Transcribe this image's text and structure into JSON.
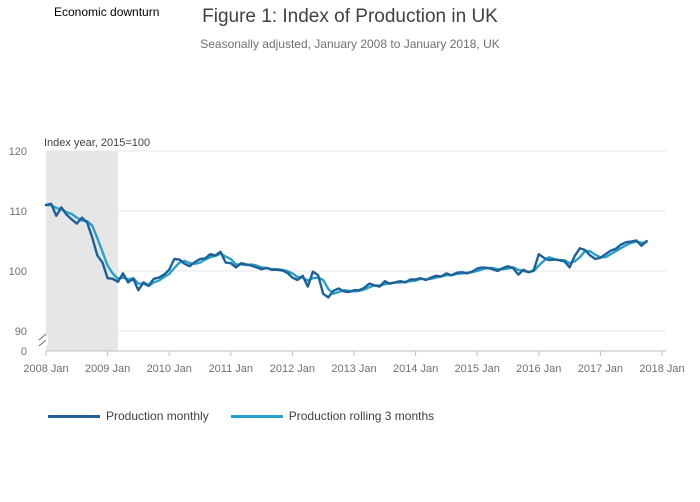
{
  "annotation": "Economic downturn",
  "colors": {
    "monthly": "#206095",
    "rolling": "#27a0cc",
    "shade": "#e6e6e6",
    "grid": "#e5e5e5"
  },
  "chart_data": {
    "type": "line",
    "title": "Figure 1: Index of Production in UK",
    "subtitle": "Seasonally adjusted, January 2008 to January 2018, UK",
    "ylabel": "Index year, 2015=100",
    "ylim": [
      90,
      120
    ],
    "yticks": [
      "120",
      "110",
      "100",
      "90"
    ],
    "ybase_label": "0",
    "xticks": [
      "2008 Jan",
      "2009 Jan",
      "2010 Jan",
      "2011 Jan",
      "2012 Jan",
      "2013 Jan",
      "2014 Jan",
      "2015 Jan",
      "2016 Jan",
      "2017 Jan",
      "2018 Jan"
    ],
    "shaded_region": {
      "label": "Economic downturn",
      "start_month": 0,
      "end_month": 14
    },
    "series": [
      {
        "name": "Production monthly",
        "values": [
          111,
          111.2,
          109.2,
          110.6,
          109.4,
          108.6,
          107.9,
          108.9,
          108.1,
          105.6,
          102.6,
          101.4,
          98.8,
          98.7,
          98.2,
          99.6,
          98.1,
          98.7,
          96.8,
          98.1,
          97.6,
          98.7,
          98.9,
          99.4,
          100.2,
          102,
          101.9,
          101.2,
          100.8,
          101.5,
          102,
          102.1,
          102.8,
          102.6,
          103.2,
          101.4,
          101.3,
          100.6,
          101.3,
          101.1,
          100.9,
          100.6,
          100.3,
          100.5,
          100.2,
          100.2,
          100.1,
          99.7,
          98.9,
          98.5,
          99.2,
          97.4,
          99.9,
          99.3,
          96.2,
          95.6,
          96.7,
          97.1,
          96.6,
          96.5,
          96.8,
          96.8,
          97.2,
          97.9,
          97.6,
          97.4,
          98.3,
          97.9,
          98.1,
          98.3,
          98.1,
          98.6,
          98.6,
          98.8,
          98.5,
          98.9,
          99.2,
          99.1,
          99.6,
          99.3,
          99.7,
          99.8,
          99.6,
          99.9,
          100.4,
          100.6,
          100.5,
          100.3,
          100.0,
          100.5,
          100.8,
          100.5,
          99.4,
          100.2,
          99.8,
          100.1,
          102.8,
          102.2,
          101.8,
          101.9,
          101.8,
          101.6,
          100.6,
          102.5,
          103.8,
          103.5,
          102.6,
          102.0,
          102.2,
          102.8,
          103.4,
          103.7,
          104.4,
          104.8,
          104.9,
          105.1,
          104.2,
          105.0
        ]
      },
      {
        "name": "Production rolling 3 months",
        "values": [
          111,
          111,
          110.5,
          110.3,
          109.8,
          109.5,
          108.9,
          108.4,
          108.3,
          107.6,
          105.5,
          103.2,
          100.9,
          99.6,
          98.7,
          98.9,
          98.6,
          98.8,
          97.9,
          97.9,
          97.5,
          98.1,
          98.4,
          99.0,
          99.5,
          100.5,
          101.4,
          101.7,
          101.3,
          101.2,
          101.4,
          101.9,
          102.3,
          102.5,
          102.9,
          102.4,
          102.0,
          101.1,
          101.1,
          101.0,
          101.1,
          100.9,
          100.6,
          100.5,
          100.3,
          100.3,
          100.2,
          100.0,
          99.6,
          99.0,
          98.9,
          98.4,
          98.8,
          98.9,
          98.5,
          97.0,
          96.2,
          96.5,
          96.8,
          96.7,
          96.6,
          96.7,
          96.9,
          97.3,
          97.6,
          97.6,
          97.8,
          97.9,
          98.1,
          98.1,
          98.2,
          98.3,
          98.4,
          98.7,
          98.6,
          98.7,
          98.9,
          99.1,
          99.3,
          99.3,
          99.5,
          99.6,
          99.7,
          99.8,
          100.0,
          100.3,
          100.5,
          100.5,
          100.3,
          100.3,
          100.4,
          100.6,
          100.2,
          100.0,
          99.8,
          100.0,
          100.9,
          101.7,
          102.3,
          102.0,
          101.8,
          101.8,
          101.3,
          101.6,
          102.3,
          103.3,
          103.3,
          102.7,
          102.3,
          102.3,
          102.8,
          103.3,
          103.8,
          104.3,
          104.7,
          104.9,
          104.7,
          104.8
        ]
      }
    ],
    "legend_position": "bottom-left",
    "grid": true
  }
}
